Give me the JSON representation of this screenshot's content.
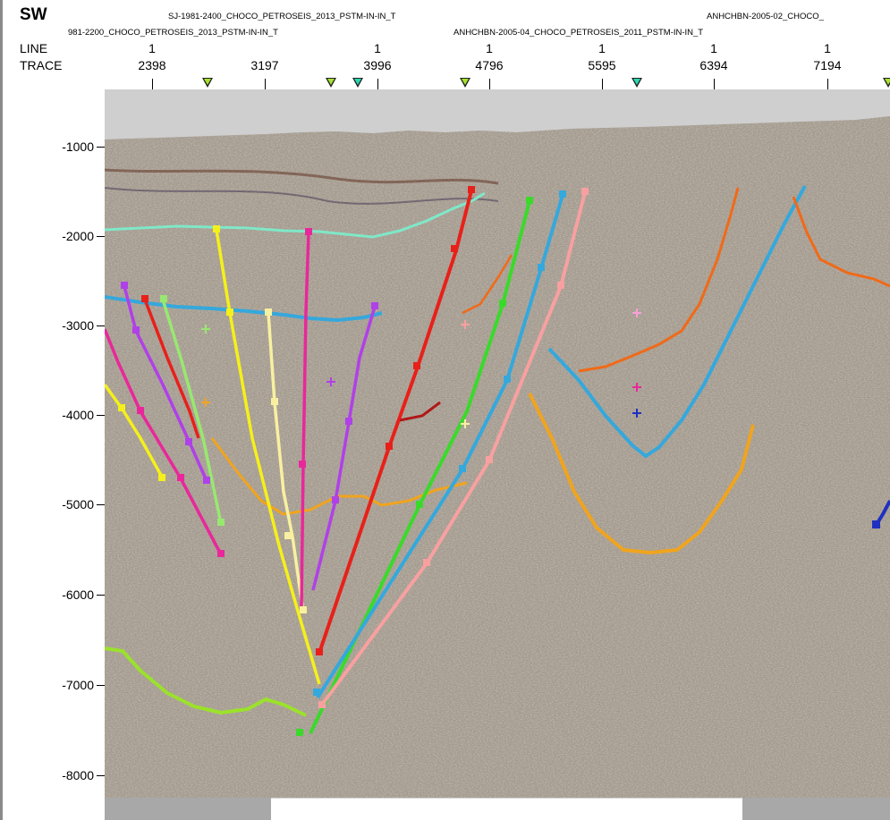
{
  "header": {
    "direction": "SW",
    "line_label": "LINE",
    "trace_label": "TRACE",
    "line_names": [
      "SJ-1981-2400_CHOCO_PETROSEIS_2013_PSTM-IN-IN_T",
      "981-2200_CHOCO_PETROSEIS_2013_PSTM-IN-IN_T",
      "ANHCHBN-2005-04_CHOCO_PETROSEIS_2011_PSTM-IN-IN_T",
      "ANHCHBN-2005-02_CHOCO_"
    ],
    "line_values": [
      "1",
      "1",
      "1",
      "1",
      "1",
      "1",
      "1"
    ],
    "trace_values": [
      "2398",
      "3197",
      "3996",
      "4796",
      "5595",
      "6394",
      "7194"
    ]
  },
  "depth_axis": {
    "labels": [
      "-1000",
      "-2000",
      "-3000",
      "-4000",
      "-5000",
      "-6000",
      "-7000",
      "-8000"
    ],
    "values": [
      -1000,
      -2000,
      -3000,
      -4000,
      -5000,
      -6000,
      -7000,
      -8000
    ]
  },
  "colors": {
    "background_gray": "#cfcfcf",
    "seismic_base": "#a39a8e",
    "horizon_top": "#7fe8c8",
    "horizon_blue": "#35a8dc",
    "horizon_orange": "#f0a41e",
    "horizon_green_deep": "#9be22a",
    "horizon_dark_orange": "#f06a18"
  },
  "status": {
    "scrollbar_position": 0.18
  }
}
